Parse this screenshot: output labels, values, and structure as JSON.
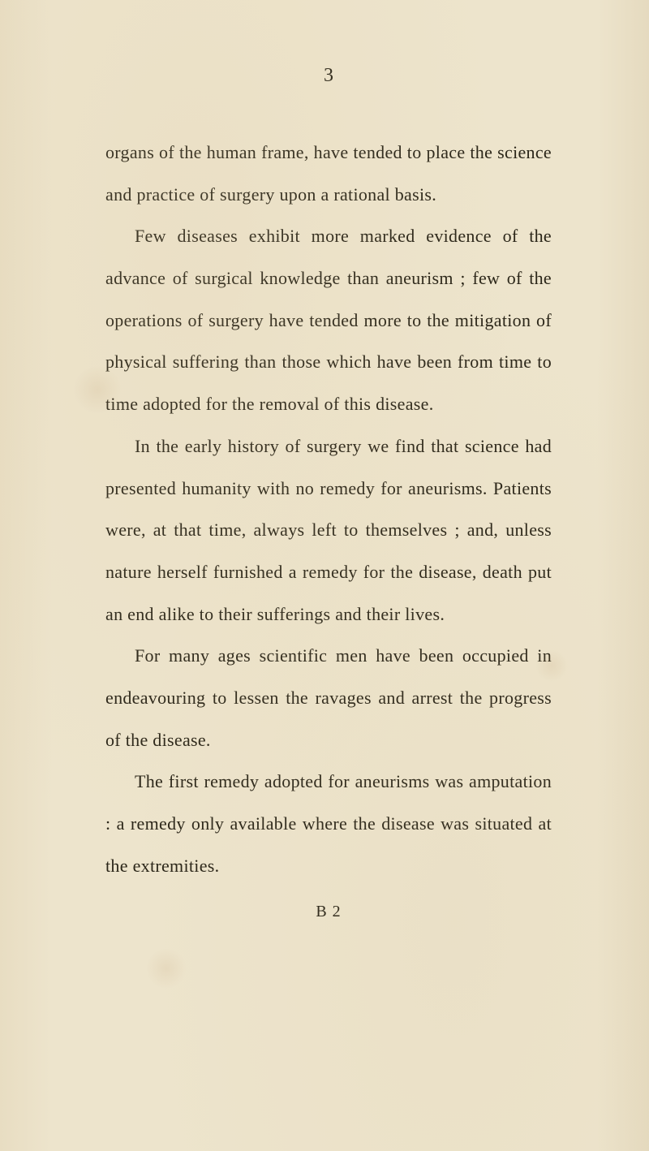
{
  "page": {
    "number": "3",
    "background_color": "#ede4cc",
    "text_color": "#2a2518",
    "font_size": 22,
    "line_height": 2.35,
    "font_family": "Georgia, serif"
  },
  "paragraphs": [
    "organs of the human frame, have tended to place the science and practice of surgery upon a rational basis.",
    "Few diseases exhibit more marked evidence of the advance of surgical knowledge than aneurism ; few of the operations of surgery have tended more to the mitigation of physical suffering than those which have been from time to time adopted for the removal of this disease.",
    "In the early history of surgery we find that science had presented humanity with no remedy for aneurisms. Patients were, at that time, always left to themselves ; and, unless nature herself furnished a remedy for the disease, death put an end alike to their sufferings and their lives.",
    "For many ages scientific men have been occupied in endeavouring to lessen the ravages and arrest the progress of the disease.",
    "The first remedy adopted for aneurisms was amputation : a remedy only available where the disease was situated at the extremities."
  ],
  "signature": "B 2"
}
